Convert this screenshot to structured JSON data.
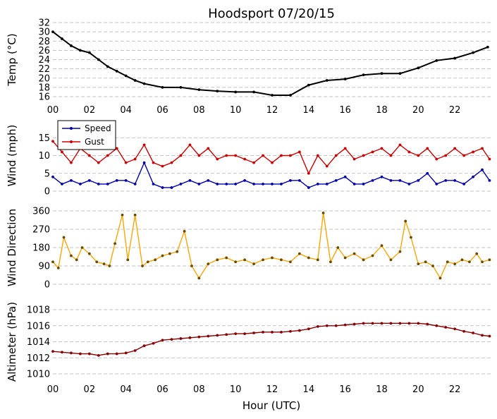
{
  "title": "Hoodsport 07/20/15",
  "xlabel": "Hour (UTC)",
  "x_ticks": [
    "00",
    "02",
    "04",
    "06",
    "08",
    "10",
    "12",
    "14",
    "16",
    "18",
    "20",
    "22"
  ],
  "colors": {
    "temp": "#000000",
    "speed": "#0000b0",
    "gust": "#d00000",
    "direction": "#ffa500",
    "altimeter": "#8b0000"
  },
  "chart_data": [
    {
      "type": "line",
      "ylabel": "Temp (°C)",
      "ylim": [
        16,
        32
      ],
      "yticks": [
        "16",
        "18",
        "20",
        "22",
        "24",
        "26",
        "28",
        "30",
        "32"
      ],
      "grid": true,
      "x": [
        0,
        0.5,
        1,
        1.5,
        2,
        2.5,
        3,
        3.5,
        4,
        4.5,
        5,
        6,
        7,
        8,
        9,
        10,
        11,
        12,
        13,
        14,
        15,
        16,
        17,
        18,
        19,
        20,
        21,
        22,
        23,
        23.8
      ],
      "series": [
        {
          "values": [
            30,
            28.5,
            27,
            26,
            25.5,
            24,
            22.5,
            21.5,
            20.5,
            19.5,
            18.8,
            18,
            18,
            17.5,
            17.2,
            17,
            17,
            16.3,
            16.3,
            18.5,
            19.5,
            19.8,
            20.7,
            21,
            21,
            22.2,
            23.8,
            24.3,
            25.5,
            26.7
          ]
        }
      ]
    },
    {
      "type": "line",
      "ylabel": "Wind (mph)",
      "ylim": [
        0,
        20
      ],
      "yticks": [
        "0",
        "5",
        "10",
        "15"
      ],
      "grid": true,
      "legend": "top-left",
      "x": [
        0,
        0.5,
        1,
        1.5,
        2,
        2.5,
        3,
        3.5,
        4,
        4.5,
        5,
        5.5,
        6,
        6.5,
        7,
        7.5,
        8,
        8.5,
        9,
        9.5,
        10,
        10.5,
        11,
        11.5,
        12,
        12.5,
        13,
        13.5,
        14,
        14.5,
        15,
        15.5,
        16,
        16.5,
        17,
        17.5,
        18,
        18.5,
        19,
        19.5,
        20,
        20.5,
        21,
        21.5,
        22,
        22.5,
        23,
        23.5,
        23.9
      ],
      "series": [
        {
          "name": "Speed",
          "values": [
            4,
            2,
            3,
            2,
            3,
            2,
            2,
            3,
            3,
            2,
            8,
            2,
            1,
            1,
            2,
            3,
            2,
            3,
            2,
            2,
            2,
            3,
            2,
            2,
            2,
            2,
            3,
            3,
            1,
            2,
            2,
            3,
            4,
            2,
            2,
            3,
            4,
            3,
            3,
            2,
            3,
            5,
            2,
            3,
            3,
            2,
            4,
            6,
            3
          ]
        },
        {
          "name": "Gust",
          "values": [
            14,
            11,
            8,
            12,
            10,
            8,
            10,
            12,
            8,
            9,
            13,
            8,
            7,
            8,
            10,
            13,
            10,
            12,
            9,
            10,
            10,
            9,
            8,
            10,
            8,
            10,
            10,
            11,
            5,
            10,
            7,
            10,
            12,
            9,
            10,
            11,
            12,
            10,
            13,
            11,
            10,
            12,
            9,
            10,
            12,
            10,
            11,
            12,
            9
          ]
        }
      ]
    },
    {
      "type": "line",
      "ylabel": "Wind Direction",
      "ylim": [
        0,
        360
      ],
      "yticks": [
        "0",
        "90",
        "180",
        "270",
        "360"
      ],
      "grid": true,
      "x": [
        0,
        0.3,
        0.6,
        1,
        1.3,
        1.6,
        2,
        2.4,
        2.8,
        3.1,
        3.4,
        3.8,
        4.1,
        4.5,
        4.9,
        5.2,
        5.6,
        6,
        6.4,
        6.8,
        7.2,
        7.6,
        8,
        8.5,
        9,
        9.5,
        10,
        10.5,
        11,
        11.5,
        12,
        12.5,
        13,
        13.5,
        14,
        14.5,
        14.8,
        15.2,
        15.6,
        16,
        16.5,
        17,
        17.5,
        18,
        18.5,
        19,
        19.3,
        19.6,
        20,
        20.4,
        20.8,
        21.2,
        21.6,
        22,
        22.4,
        22.8,
        23.2,
        23.5,
        23.9
      ],
      "series": [
        {
          "values": [
            110,
            80,
            230,
            140,
            120,
            180,
            150,
            110,
            100,
            90,
            200,
            340,
            120,
            340,
            90,
            110,
            120,
            140,
            150,
            160,
            260,
            90,
            30,
            100,
            120,
            130,
            110,
            120,
            100,
            120,
            130,
            120,
            110,
            150,
            130,
            120,
            350,
            110,
            180,
            130,
            150,
            120,
            140,
            190,
            120,
            160,
            310,
            230,
            100,
            110,
            90,
            30,
            110,
            100,
            120,
            110,
            150,
            110,
            120
          ]
        }
      ]
    },
    {
      "type": "line",
      "ylabel": "Altimeter (hPa)",
      "ylim": [
        1010,
        1018
      ],
      "yticks": [
        "1010",
        "1012",
        "1014",
        "1016",
        "1018"
      ],
      "grid": true,
      "x": [
        0,
        0.5,
        1,
        1.5,
        2,
        2.5,
        3,
        3.5,
        4,
        4.5,
        5,
        5.5,
        6,
        6.5,
        7,
        7.5,
        8,
        8.5,
        9,
        9.5,
        10,
        10.5,
        11,
        11.5,
        12,
        12.5,
        13,
        13.5,
        14,
        14.5,
        15,
        15.5,
        16,
        16.5,
        17,
        17.5,
        18,
        18.5,
        19,
        19.5,
        20,
        20.5,
        21,
        21.5,
        22,
        22.5,
        23,
        23.5,
        23.9
      ],
      "series": [
        {
          "values": [
            1012.8,
            1012.7,
            1012.6,
            1012.5,
            1012.5,
            1012.3,
            1012.5,
            1012.5,
            1012.6,
            1012.9,
            1013.5,
            1013.8,
            1014.2,
            1014.3,
            1014.4,
            1014.5,
            1014.6,
            1014.7,
            1014.8,
            1014.9,
            1015,
            1015,
            1015.1,
            1015.2,
            1015.2,
            1015.2,
            1015.3,
            1015.4,
            1015.6,
            1015.9,
            1016,
            1016,
            1016.1,
            1016.2,
            1016.3,
            1016.3,
            1016.3,
            1016.3,
            1016.3,
            1016.3,
            1016.3,
            1016.2,
            1016,
            1015.8,
            1015.6,
            1015.3,
            1015.1,
            1014.8,
            1014.7
          ]
        }
      ]
    }
  ]
}
